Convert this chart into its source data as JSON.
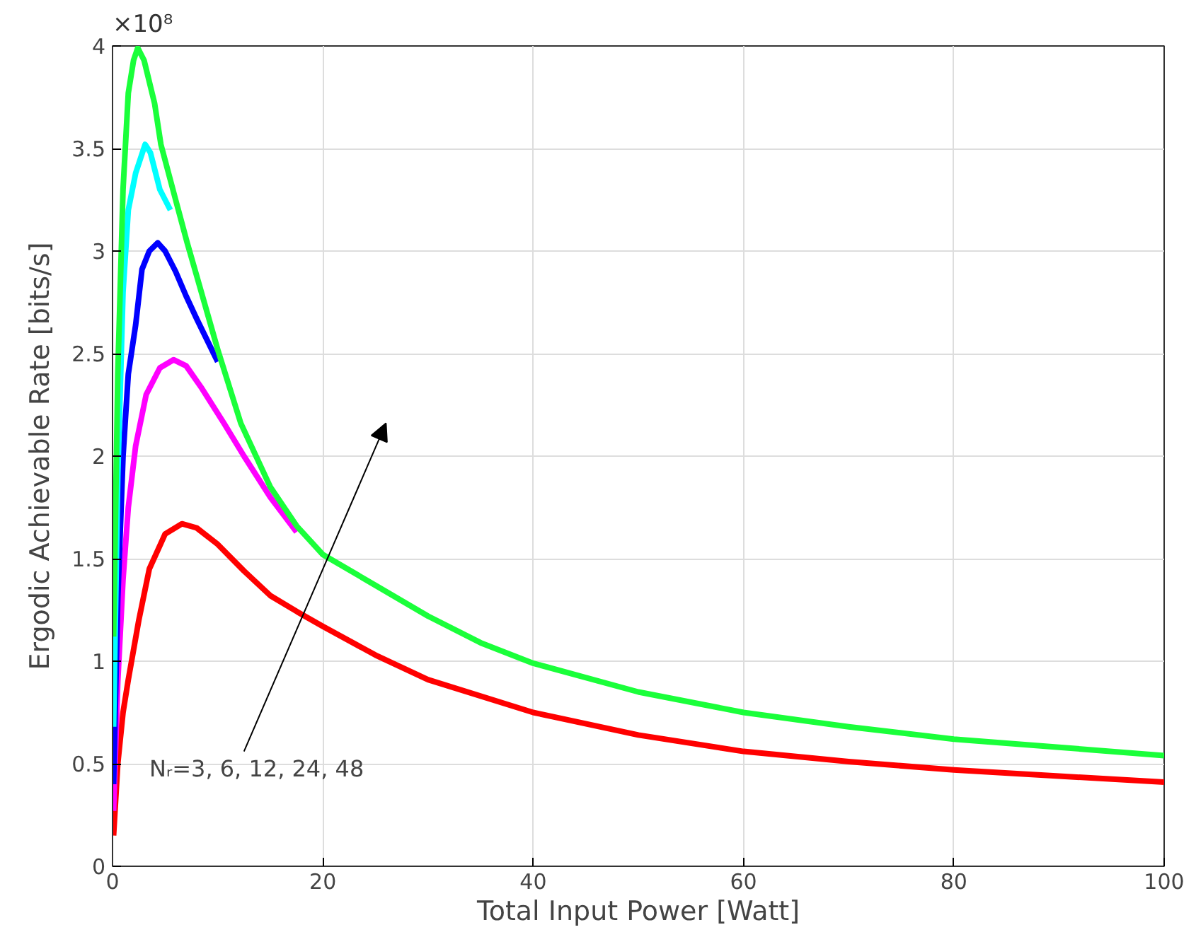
{
  "chart_data": {
    "type": "line",
    "xlabel": "Total Input Power [Watt]",
    "ylabel": "Ergodic Achievable Rate [bits/s]",
    "xlim": [
      0,
      100
    ],
    "ylim": [
      0,
      4
    ],
    "xticks": [
      0,
      20,
      40,
      60,
      80,
      100
    ],
    "yticks": [
      0,
      0.5,
      1,
      1.5,
      2,
      2.5,
      3,
      3.5,
      4
    ],
    "grid": true,
    "annotations": [
      "×10⁸",
      "Nᵣ=3, 6, 12, 24, 48"
    ],
    "series": [
      {
        "color": "#ff0000",
        "x": [
          0.1,
          0.5,
          1,
          1.5,
          2.5,
          3.5,
          5,
          6.6,
          8,
          10,
          12.5,
          15,
          17.6,
          20,
          25,
          30,
          40,
          50,
          60,
          70,
          80,
          90,
          100
        ],
        "values": [
          0.15,
          0.5,
          0.75,
          0.91,
          1.2,
          1.45,
          1.62,
          1.67,
          1.65,
          1.57,
          1.44,
          1.32,
          1.24,
          1.17,
          1.03,
          0.91,
          0.75,
          0.64,
          0.56,
          0.51,
          0.47,
          0.44,
          0.41
        ]
      },
      {
        "color": "#ff00ff",
        "x": [
          0.1,
          0.5,
          1,
          1.5,
          2.2,
          3.2,
          4.5,
          5.8,
          7,
          8.5,
          10.6,
          12.5,
          15,
          17.5
        ],
        "values": [
          0.27,
          0.9,
          1.4,
          1.75,
          2.05,
          2.3,
          2.43,
          2.47,
          2.44,
          2.33,
          2.16,
          2.0,
          1.8,
          1.63
        ]
      },
      {
        "color": "#0000ff",
        "x": [
          0.1,
          0.5,
          1,
          1.5,
          2.2,
          2.8,
          3.5,
          4.3,
          5,
          6,
          7,
          8,
          10
        ],
        "values": [
          0.4,
          1.3,
          2.0,
          2.4,
          2.64,
          2.91,
          3.0,
          3.04,
          3.0,
          2.9,
          2.78,
          2.67,
          2.46
        ]
      },
      {
        "color": "#00ffff",
        "x": [
          0.1,
          0.5,
          1,
          1.5,
          2.2,
          3.1,
          3.6,
          4.5,
          5.5
        ],
        "values": [
          0.68,
          1.9,
          2.8,
          3.2,
          3.38,
          3.52,
          3.48,
          3.3,
          3.2
        ]
      },
      {
        "color": "#1aff3a",
        "x": [
          0.1,
          0.5,
          1,
          1.5,
          2,
          2.4,
          3,
          4,
          4.6,
          6,
          7.1,
          8,
          10,
          12.2,
          15,
          17.5,
          20,
          25,
          30,
          35,
          40,
          50,
          60,
          70,
          80,
          90,
          100
        ],
        "values": [
          1.12,
          2.4,
          3.3,
          3.77,
          3.93,
          3.99,
          3.93,
          3.72,
          3.52,
          3.25,
          3.04,
          2.88,
          2.52,
          2.16,
          1.85,
          1.66,
          1.52,
          1.37,
          1.22,
          1.09,
          0.99,
          0.85,
          0.75,
          0.68,
          0.62,
          0.58,
          0.54
        ]
      }
    ]
  }
}
